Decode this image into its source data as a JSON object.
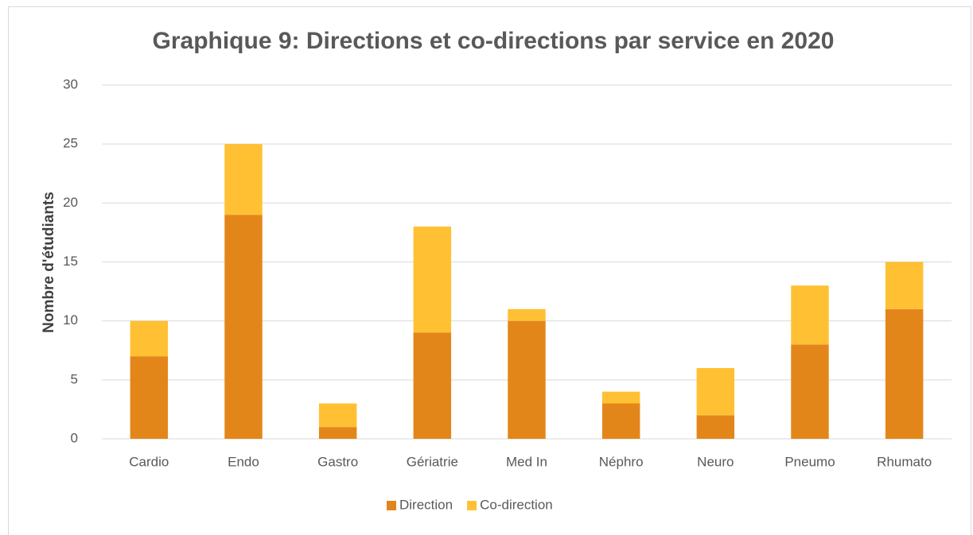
{
  "chart_data": {
    "type": "stacked_bar",
    "title": "Graphique 9: Directions et co-directions par service en 2020",
    "y_label": "Nombre d'étudiants",
    "categories": [
      "Cardio",
      "Endo",
      "Gastro",
      "Gériatrie",
      "Med In",
      "Néphro",
      "Neuro",
      "Pneumo",
      "Rhumato"
    ],
    "series": [
      {
        "name": "Direction",
        "color": "#e3861a",
        "values": [
          7,
          19,
          1,
          9,
          10,
          3,
          2,
          8,
          11
        ]
      },
      {
        "name": "Co-direction",
        "color": "#ffc133",
        "values": [
          3,
          6,
          2,
          9,
          1,
          1,
          4,
          5,
          4
        ]
      }
    ],
    "ylim": [
      0,
      30
    ],
    "yticks": [
      0,
      5,
      10,
      15,
      20,
      25,
      30
    ],
    "grid": true,
    "legend": "bottom"
  }
}
